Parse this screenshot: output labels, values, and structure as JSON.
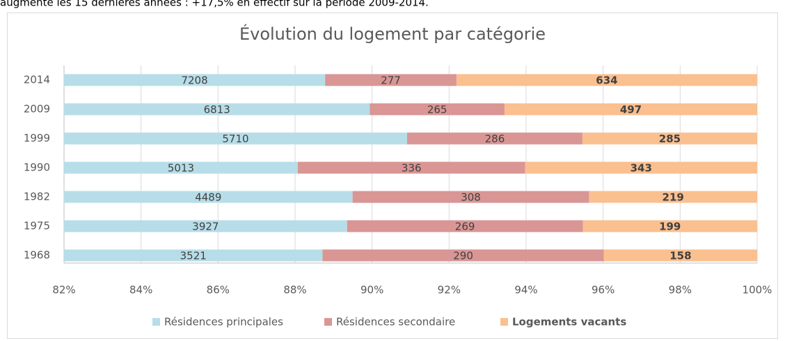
{
  "intro": "augmente les 15 dernières années : +17,5% en effectif sur la période 2009-2014.",
  "chart_data": {
    "type": "stacked_percent_barh",
    "title": "Évolution du logement par catégorie",
    "categories": [
      "2014",
      "2009",
      "1999",
      "1990",
      "1982",
      "1975",
      "1968"
    ],
    "series": [
      {
        "name": "Résidences principales",
        "color": "#b7dde8",
        "values": [
          7208,
          6813,
          5710,
          5013,
          4489,
          3927,
          3521
        ]
      },
      {
        "name": "Résidences secondaire",
        "color": "#d99694",
        "values": [
          277,
          265,
          286,
          336,
          308,
          269,
          290
        ]
      },
      {
        "name": "Logements vacants",
        "color": "#fac090",
        "values": [
          634,
          497,
          285,
          343,
          219,
          199,
          158
        ],
        "bold": true
      }
    ],
    "xlim": [
      82,
      100
    ],
    "xticks": [
      {
        "value": 82,
        "label": "82%"
      },
      {
        "value": 84,
        "label": "84%"
      },
      {
        "value": 86,
        "label": "86%"
      },
      {
        "value": 88,
        "label": "88%"
      },
      {
        "value": 90,
        "label": "90%"
      },
      {
        "value": 92,
        "label": "92%"
      },
      {
        "value": 94,
        "label": "94%"
      },
      {
        "value": 96,
        "label": "96%"
      },
      {
        "value": 98,
        "label": "98%"
      },
      {
        "value": 100,
        "label": "100%"
      }
    ],
    "grid": true,
    "legend": "bottom"
  }
}
